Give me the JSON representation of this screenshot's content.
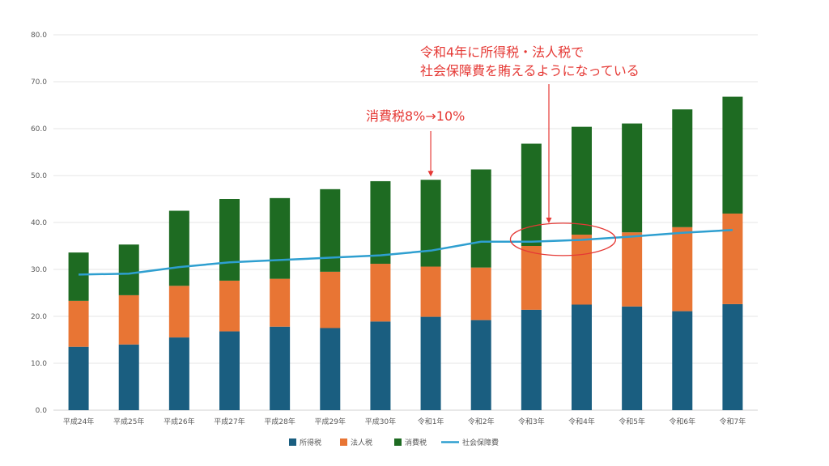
{
  "chart_data": {
    "type": "bar",
    "stacked": true,
    "categories": [
      "平成24年",
      "平成25年",
      "平成26年",
      "平成27年",
      "平成28年",
      "平成29年",
      "平成30年",
      "令和1年",
      "令和2年",
      "令和3年",
      "令和4年",
      "令和5年",
      "令和6年",
      "令和7年"
    ],
    "series": [
      {
        "name": "所得税",
        "type": "bar",
        "color": "#1a5e80",
        "values": [
          13.5,
          14.0,
          15.5,
          16.8,
          17.8,
          17.5,
          18.9,
          19.9,
          19.2,
          21.4,
          22.5,
          22.1,
          21.1,
          22.6
        ]
      },
      {
        "name": "法人税",
        "type": "bar",
        "color": "#e87534",
        "values": [
          9.8,
          10.5,
          11.0,
          10.8,
          10.2,
          12.0,
          12.3,
          10.7,
          11.2,
          13.6,
          14.9,
          15.8,
          17.9,
          19.3
        ]
      },
      {
        "name": "消費税",
        "type": "bar",
        "color": "#1e6b22",
        "values": [
          10.3,
          10.8,
          16.0,
          17.4,
          17.2,
          17.6,
          17.6,
          18.5,
          20.9,
          21.8,
          23.0,
          23.2,
          25.1,
          24.9
        ]
      },
      {
        "name": "社会保障費",
        "type": "line",
        "color": "#2e9fd0",
        "values": [
          28.9,
          29.1,
          30.5,
          31.5,
          32.0,
          32.5,
          33.0,
          34.0,
          35.9,
          35.9,
          36.3,
          37.0,
          37.8,
          38.4
        ]
      }
    ],
    "ylim": [
      0,
      80
    ],
    "yticks": [
      "0.0",
      "10.0",
      "20.0",
      "30.0",
      "40.0",
      "50.0",
      "60.0",
      "70.0",
      "80.0"
    ],
    "grid": true,
    "legend": "bottom",
    "annotations": [
      {
        "lines": [
          "消費税8%→10%"
        ],
        "target_category": "令和1年"
      },
      {
        "lines": [
          "令和4年に所得税・法人税で",
          "社会保障費を賄えるようになっている"
        ],
        "target_category": "令和4年"
      }
    ]
  }
}
